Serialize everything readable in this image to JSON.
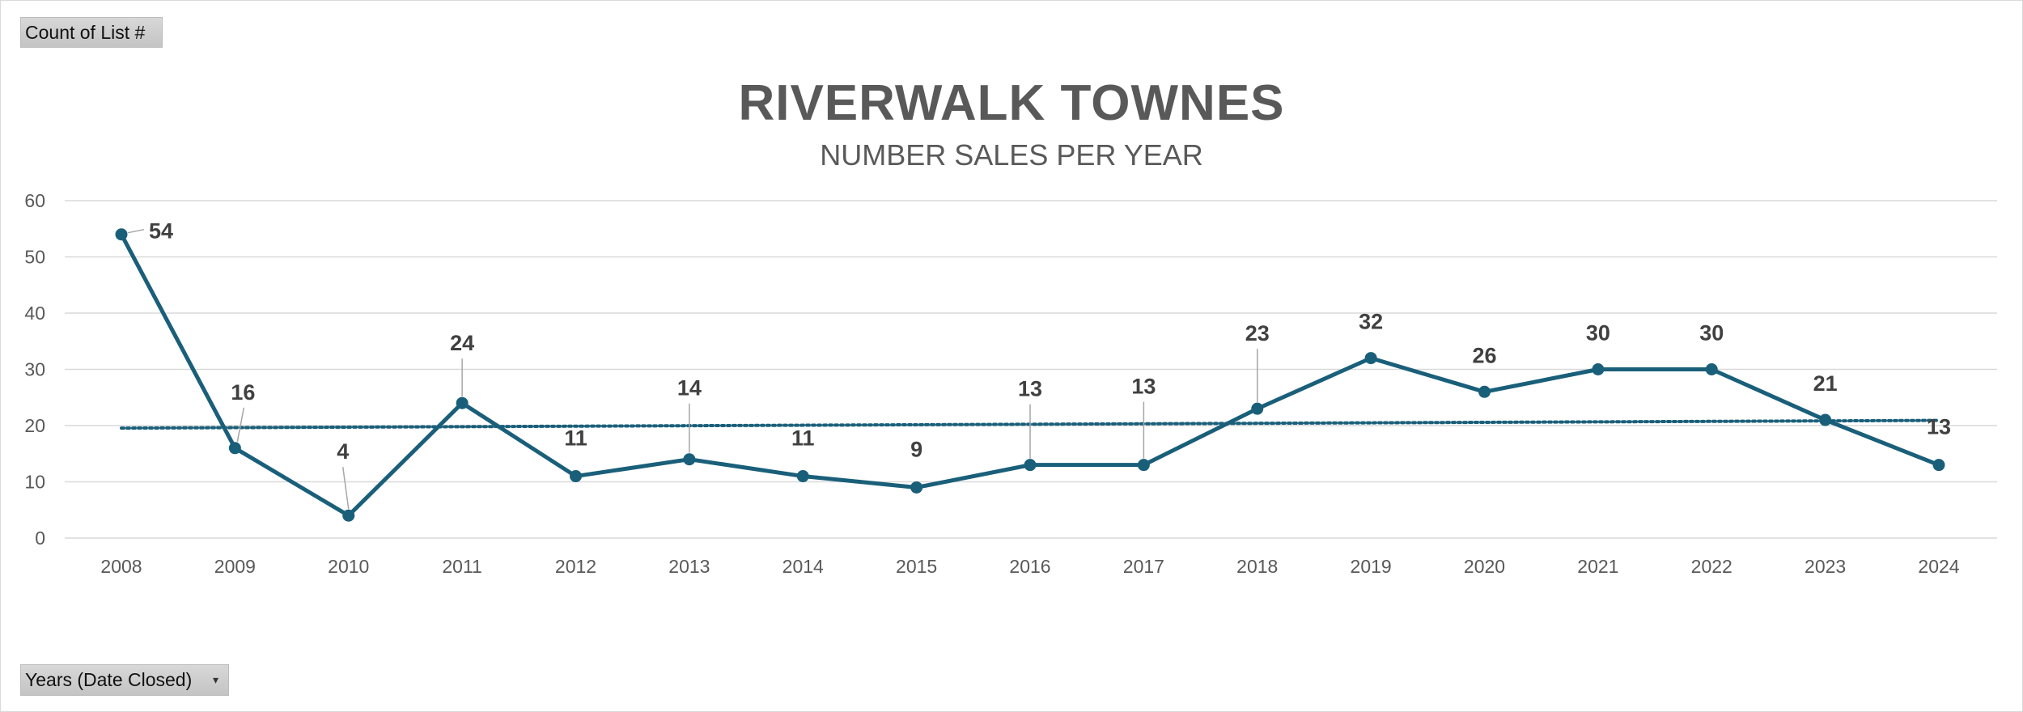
{
  "pivot": {
    "value_field": "Count of List #",
    "axis_field": "Years (Date Closed)"
  },
  "colors": {
    "series": "#1a5f7a",
    "grid": "#d9d9d9",
    "text": "#595959",
    "label": "#404040"
  },
  "chart_data": {
    "type": "line",
    "title": "RIVERWALK TOWNES",
    "subtitle": "NUMBER SALES PER YEAR",
    "xlabel": "",
    "ylabel": "",
    "categories": [
      "2008",
      "2009",
      "2010",
      "2011",
      "2012",
      "2013",
      "2014",
      "2015",
      "2016",
      "2017",
      "2018",
      "2019",
      "2020",
      "2021",
      "2022",
      "2023",
      "2024"
    ],
    "series": [
      {
        "name": "Count of List #",
        "values": [
          54,
          16,
          4,
          24,
          11,
          14,
          11,
          9,
          13,
          13,
          23,
          32,
          26,
          30,
          30,
          21,
          13
        ]
      }
    ],
    "trendline": {
      "type": "linear",
      "style": "dotted"
    },
    "ylim": [
      0,
      60
    ],
    "yticks": [
      0,
      10,
      20,
      30,
      40,
      50,
      60
    ],
    "grid": true,
    "legend": "none",
    "data_labels": true
  }
}
